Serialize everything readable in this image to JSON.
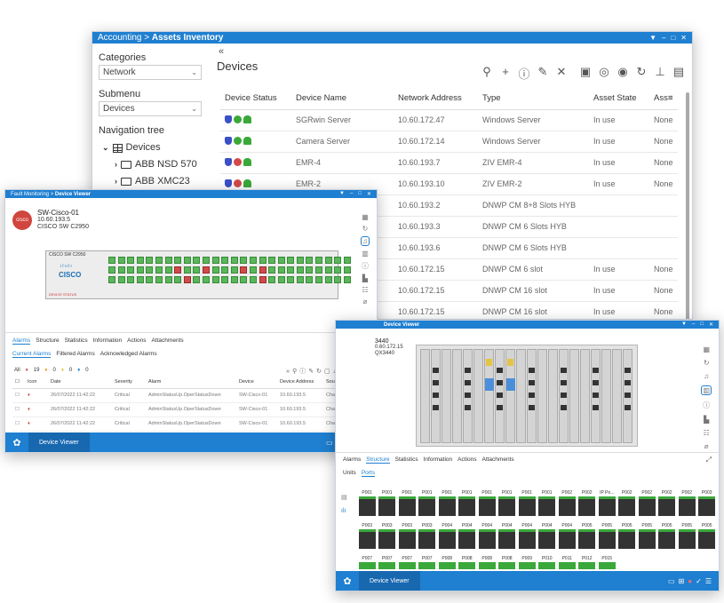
{
  "assets": {
    "breadcrumb_parent": "Accounting",
    "breadcrumb_sep": " > ",
    "breadcrumb_current": "Assets Inventory",
    "controls": [
      "▼",
      "–",
      "□",
      "✕"
    ],
    "categories_label": "Categories",
    "categories_value": "Network",
    "submenu_label": "Submenu",
    "submenu_value": "Devices",
    "nav_label": "Navigation tree",
    "tree": [
      {
        "label": "Devices",
        "expanded": true
      },
      {
        "label": "ABB NSD 570"
      },
      {
        "label": "ABB XMC23"
      }
    ],
    "collapse_glyph": "«",
    "title": "Devices",
    "toolbar": [
      "search-icon",
      "add-icon",
      "info-icon",
      "edit-icon",
      "delete-icon",
      "camera-icon",
      "clone-icon",
      "sync-icon",
      "refresh-icon",
      "add-child-icon",
      "export-icon"
    ],
    "columns": [
      "Device Status",
      "Device Name",
      "Network Address",
      "Type",
      "Asset State",
      "Ass"
    ],
    "rows": [
      {
        "status": [
          "blue",
          "green",
          "green"
        ],
        "name": "SGRwin Server",
        "addr": "10.60.172.47",
        "type": "Windows Server",
        "state": "In use",
        "ass": "None"
      },
      {
        "status": [
          "blue",
          "green",
          "green"
        ],
        "name": "Camera Server",
        "addr": "10.60.172.14",
        "type": "Windows Server",
        "state": "In use",
        "ass": "None"
      },
      {
        "status": [
          "blue",
          "red",
          "green"
        ],
        "name": "EMR-4",
        "addr": "10.60.193.7",
        "type": "ZIV EMR-4",
        "state": "In use",
        "ass": "None"
      },
      {
        "status": [
          "blue",
          "red",
          "green"
        ],
        "name": "EMR-2",
        "addr": "10.60.193.10",
        "type": "ZIV EMR-2",
        "state": "In use",
        "ass": "None"
      },
      {
        "status": [],
        "name": "",
        "addr": "10.60.193.2",
        "type": "DNWP CM 8+8 Slots HYB",
        "state": "",
        "ass": ""
      },
      {
        "status": [],
        "name": "",
        "addr": "10.60.193.3",
        "type": "DNWP CM 6 Slots HYB",
        "state": "",
        "ass": ""
      },
      {
        "status": [],
        "name": "",
        "addr": "10.60.193.6",
        "type": "DNWP CM 6 Slots HYB",
        "state": "",
        "ass": ""
      },
      {
        "status": [],
        "name": "",
        "addr": "10.60.172.15",
        "type": "DNWP CM 6 slot",
        "state": "In use",
        "ass": "None"
      },
      {
        "status": [],
        "name": "",
        "addr": "10.60.172.15",
        "type": "DNWP CM 16 slot",
        "state": "In use",
        "ass": "None"
      },
      {
        "status": [],
        "name": "",
        "addr": "10.60.172.15",
        "type": "DNWP CM 16 slot",
        "state": "In use",
        "ass": "None"
      }
    ]
  },
  "dev1": {
    "title_parent": "Fault Monitoring",
    "title_current": "Device Viewer",
    "name": "SW-Cisco-01",
    "ip": "10.60.193.5",
    "model": "CISCO SW C2950",
    "vendor": "cisco",
    "switch_label": "CISCO SW C2950",
    "switch_brand": "CISCO",
    "device_status": "DEVICE STATUS",
    "tabs": [
      "Alarms",
      "Structure",
      "Statistics",
      "Information",
      "Actions",
      "Attachments"
    ],
    "subtabs": [
      "Current Alarms",
      "Filtered Alarms",
      "Acknowledged Alarms"
    ],
    "counts": {
      "all": "All",
      "critical": "19",
      "major": "0",
      "minor": "0",
      "info": "0"
    },
    "columns": [
      "",
      "Icon",
      "Date",
      "Severity",
      "Alarm",
      "Device",
      "Device Address",
      "Source"
    ],
    "alarms": [
      {
        "date": "26/07/2022 11:42:22",
        "severity": "Critical",
        "alarm": "AdminStatusUp.OperStatusDown",
        "device": "SW-Cisco-01",
        "addr": "10.60.193.5",
        "source": "Chassis/FastEthe"
      },
      {
        "date": "26/07/2022 11:42:22",
        "severity": "Critical",
        "alarm": "AdminStatusUp.OperStatusDown",
        "device": "SW-Cisco-01",
        "addr": "10.60.193.5",
        "source": "Chassis/GigabitE"
      },
      {
        "date": "26/07/2022 11:42:22",
        "severity": "Critical",
        "alarm": "AdminStatusUp.OperStatusDown",
        "device": "SW-Cisco-01",
        "addr": "10.60.193.5",
        "source": "Chassis/GigabitE"
      }
    ],
    "app_name": "Device Viewer"
  },
  "dev2": {
    "title_current": "Device Viewer",
    "name_fragment": "3440",
    "ip_fragment": "0.60.172.15",
    "model_fragment": "QX3440",
    "tabs": [
      "Alarms",
      "Structure",
      "Statistics",
      "Information",
      "Actions",
      "Attachments"
    ],
    "subtabs": [
      "Units",
      "Ports"
    ],
    "row1": [
      "P001",
      "P001",
      "P001",
      "P001",
      "P001",
      "P001",
      "P001",
      "P001",
      "P001",
      "P001",
      "P002",
      "P002",
      "IP Po...",
      "P002",
      "P002",
      "P002",
      "P002",
      "P003"
    ],
    "row2": [
      "P003",
      "P003",
      "P003",
      "P003",
      "P004",
      "P004",
      "P004",
      "P004",
      "P004",
      "P004",
      "P004",
      "P005",
      "P005",
      "P005",
      "P005",
      "P005",
      "P005",
      "P005"
    ],
    "row3": [
      "P007",
      "P007",
      "P007",
      "P007",
      "P008",
      "P008",
      "P008",
      "P008",
      "P009",
      "P010",
      "P011",
      "P012",
      "P015"
    ],
    "app_name": "Device Viewer"
  },
  "colors": {
    "accent": "#1f7fd0",
    "ok": "#3aa83a",
    "critical": "#d14a4a",
    "shield": "#3b4fc9"
  }
}
